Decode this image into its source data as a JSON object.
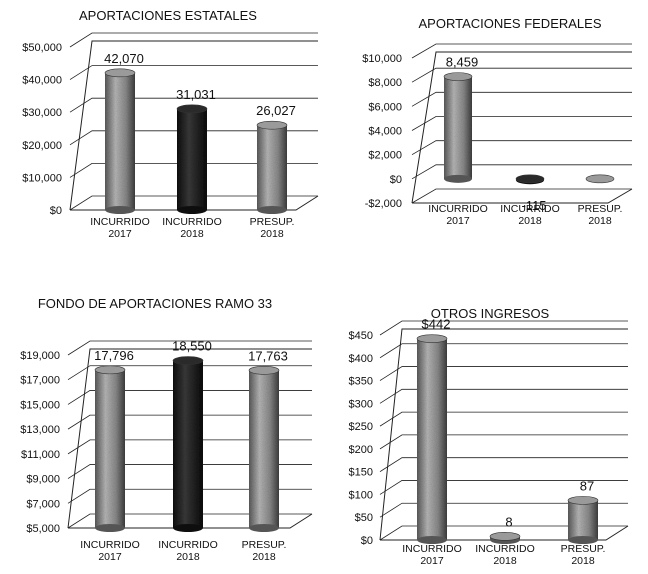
{
  "chart_data": [
    {
      "type": "bar",
      "title": "APORTACIONES ESTATALES",
      "categories": [
        [
          "INCURRIDO",
          "2017"
        ],
        [
          "INCURRIDO",
          "2018"
        ],
        [
          "PRESUP.",
          "2018"
        ]
      ],
      "values": [
        42070,
        31031,
        26027
      ],
      "value_labels": [
        "42,070",
        "31,031",
        "26,027"
      ],
      "ylim": [
        0,
        50000
      ],
      "yticks": [
        0,
        10000,
        20000,
        30000,
        40000,
        50000
      ],
      "ytick_labels": [
        "$0",
        "$10,000",
        "$20,000",
        "$30,000",
        "$40,000",
        "$50,000"
      ],
      "grid": true
    },
    {
      "type": "bar",
      "title": "APORTACIONES FEDERALES",
      "categories": [
        [
          "INCURRIDO",
          "2017"
        ],
        [
          "INCURRIDO",
          "2018"
        ],
        [
          "PRESUP.",
          "2018"
        ]
      ],
      "values": [
        8459,
        -115,
        0
      ],
      "value_labels": [
        "8,459",
        "-115",
        ""
      ],
      "ylim": [
        -2000,
        10000
      ],
      "yticks": [
        -2000,
        0,
        2000,
        4000,
        6000,
        8000,
        10000
      ],
      "ytick_labels": [
        "-$2,000",
        "$0",
        "$2,000",
        "$4,000",
        "$6,000",
        "$8,000",
        "$10,000"
      ],
      "grid": true
    },
    {
      "type": "bar",
      "title": "FONDO DE APORTACIONES RAMO 33",
      "categories": [
        [
          "INCURRIDO",
          "2017"
        ],
        [
          "INCURRIDO",
          "2018"
        ],
        [
          "PRESUP.",
          "2018"
        ]
      ],
      "values": [
        17796,
        18550,
        17763
      ],
      "value_labels": [
        "17,796",
        "18,550",
        "17,763"
      ],
      "ylim": [
        5000,
        19000
      ],
      "yticks": [
        5000,
        7000,
        9000,
        11000,
        13000,
        15000,
        17000,
        19000
      ],
      "ytick_labels": [
        "$5,000",
        "$7,000",
        "$9,000",
        "$11,000",
        "$13,000",
        "$15,000",
        "$17,000",
        "$19,000"
      ],
      "grid": true
    },
    {
      "type": "bar",
      "title": "OTROS INGRESOS",
      "categories": [
        [
          "INCURRIDO",
          "2017"
        ],
        [
          "INCURRIDO",
          "2018"
        ],
        [
          "PRESUP.",
          "2018"
        ]
      ],
      "values": [
        442,
        8,
        87
      ],
      "value_labels": [
        "$442",
        "8",
        "87"
      ],
      "ylim": [
        0,
        450
      ],
      "yticks": [
        0,
        50,
        100,
        150,
        200,
        250,
        300,
        350,
        400,
        450
      ],
      "ytick_labels": [
        "$0",
        "$50",
        "$100",
        "$150",
        "$200",
        "$250",
        "$300",
        "$350",
        "$400",
        "$450"
      ],
      "grid": true
    }
  ],
  "colors": {
    "bar_light": "#9a9a9a",
    "bar_dark": "#1e1e1e",
    "text": "#111111",
    "grid": "#222222"
  }
}
